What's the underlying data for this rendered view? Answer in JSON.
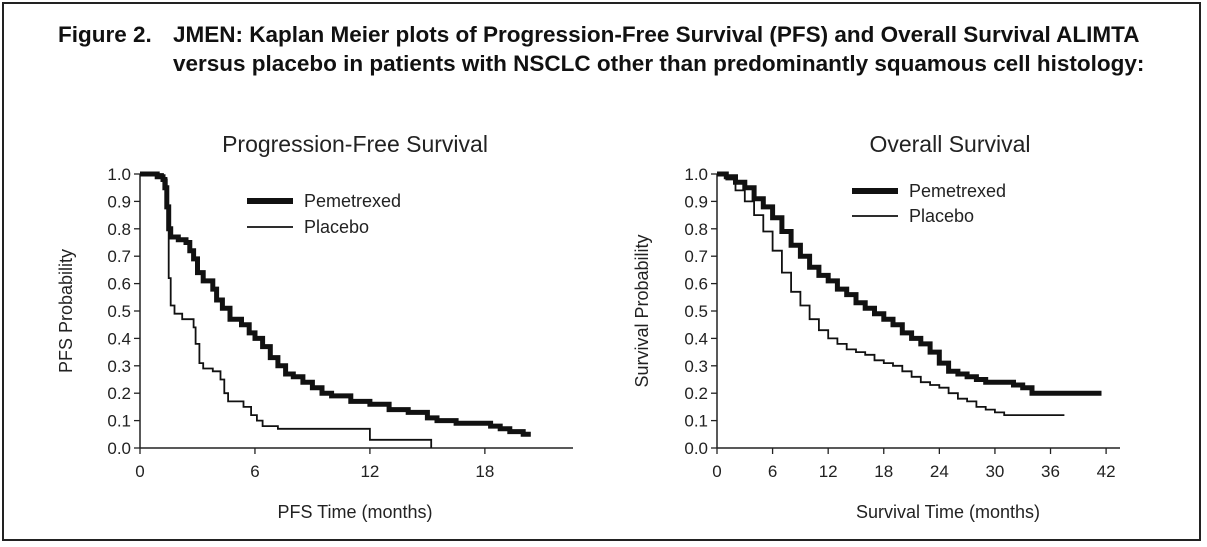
{
  "figure": {
    "label": "Figure 2.",
    "text": "JMEN: Kaplan Meier plots of Progression-Free Survival (PFS) and Overall Survival ALIMTA versus placebo in patients with NSCLC other than predominantly squamous cell histology:"
  },
  "chart_data": [
    {
      "type": "line",
      "title": "Progression-Free Survival",
      "xlabel": "PFS Time (months)",
      "ylabel": "PFS Probability",
      "xlim": [
        0,
        22.5
      ],
      "ylim": [
        0,
        1.0
      ],
      "x_ticks": [
        "0",
        "6",
        "12",
        "18"
      ],
      "x_tick_values": [
        0,
        6,
        12,
        18
      ],
      "y_ticks": [
        "0.0",
        "0.1",
        "0.2",
        "0.3",
        "0.4",
        "0.5",
        "0.6",
        "0.7",
        "0.8",
        "0.9",
        "1.0"
      ],
      "legend_position": "top-center",
      "series": [
        {
          "name": "Pemetrexed",
          "style": "thick",
          "points": [
            [
              0,
              1.0
            ],
            [
              0.6,
              1.0
            ],
            [
              0.9,
              0.99
            ],
            [
              1.2,
              0.98
            ],
            [
              1.3,
              0.95
            ],
            [
              1.4,
              0.88
            ],
            [
              1.5,
              0.8
            ],
            [
              1.6,
              0.77
            ],
            [
              2.0,
              0.76
            ],
            [
              2.4,
              0.75
            ],
            [
              2.6,
              0.72
            ],
            [
              2.8,
              0.69
            ],
            [
              3.0,
              0.64
            ],
            [
              3.3,
              0.61
            ],
            [
              3.8,
              0.58
            ],
            [
              4.0,
              0.54
            ],
            [
              4.3,
              0.51
            ],
            [
              4.7,
              0.47
            ],
            [
              5.3,
              0.45
            ],
            [
              5.7,
              0.42
            ],
            [
              6.0,
              0.4
            ],
            [
              6.4,
              0.37
            ],
            [
              6.8,
              0.33
            ],
            [
              7.2,
              0.3
            ],
            [
              7.6,
              0.27
            ],
            [
              8.0,
              0.26
            ],
            [
              8.5,
              0.24
            ],
            [
              9.0,
              0.22
            ],
            [
              9.5,
              0.2
            ],
            [
              10.0,
              0.19
            ],
            [
              11.0,
              0.17
            ],
            [
              12.0,
              0.16
            ],
            [
              13.0,
              0.14
            ],
            [
              14.0,
              0.13
            ],
            [
              15.0,
              0.11
            ],
            [
              15.5,
              0.1
            ],
            [
              16.5,
              0.09
            ],
            [
              18.0,
              0.09
            ],
            [
              18.3,
              0.08
            ],
            [
              18.8,
              0.07
            ],
            [
              19.3,
              0.06
            ],
            [
              20.0,
              0.05
            ],
            [
              20.4,
              0.05
            ]
          ]
        },
        {
          "name": "Placebo",
          "style": "thin",
          "points": [
            [
              0,
              1.0
            ],
            [
              0.8,
              1.0
            ],
            [
              1.2,
              0.98
            ],
            [
              1.4,
              0.92
            ],
            [
              1.45,
              0.8
            ],
            [
              1.5,
              0.62
            ],
            [
              1.6,
              0.52
            ],
            [
              1.8,
              0.49
            ],
            [
              2.2,
              0.47
            ],
            [
              2.8,
              0.44
            ],
            [
              2.9,
              0.38
            ],
            [
              3.1,
              0.31
            ],
            [
              3.3,
              0.29
            ],
            [
              3.8,
              0.28
            ],
            [
              4.2,
              0.25
            ],
            [
              4.4,
              0.2
            ],
            [
              4.6,
              0.17
            ],
            [
              5.4,
              0.15
            ],
            [
              5.8,
              0.12
            ],
            [
              6.1,
              0.1
            ],
            [
              6.4,
              0.08
            ],
            [
              7.2,
              0.07
            ],
            [
              11.8,
              0.07
            ],
            [
              12.0,
              0.03
            ],
            [
              15.2,
              0.03
            ],
            [
              15.2,
              0.0
            ]
          ]
        }
      ]
    },
    {
      "type": "line",
      "title": "Overall Survival",
      "xlabel": "Survival Time (months)",
      "ylabel": "Survival Probability",
      "xlim": [
        0,
        44
      ],
      "ylim": [
        0,
        1.0
      ],
      "x_ticks": [
        "0",
        "6",
        "12",
        "18",
        "24",
        "30",
        "36",
        "42"
      ],
      "x_tick_values": [
        0,
        6,
        12,
        18,
        24,
        30,
        36,
        42
      ],
      "y_ticks": [
        "0.0",
        "0.1",
        "0.2",
        "0.3",
        "0.4",
        "0.5",
        "0.6",
        "0.7",
        "0.8",
        "0.9",
        "1.0"
      ],
      "legend_position": "top-right",
      "series": [
        {
          "name": "Pemetrexed",
          "style": "thick",
          "points": [
            [
              0,
              1.0
            ],
            [
              1,
              0.99
            ],
            [
              2,
              0.97
            ],
            [
              3,
              0.95
            ],
            [
              4,
              0.91
            ],
            [
              5,
              0.88
            ],
            [
              6,
              0.84
            ],
            [
              7,
              0.79
            ],
            [
              8,
              0.74
            ],
            [
              9,
              0.7
            ],
            [
              10,
              0.66
            ],
            [
              11,
              0.63
            ],
            [
              12,
              0.61
            ],
            [
              13,
              0.58
            ],
            [
              14,
              0.56
            ],
            [
              15,
              0.53
            ],
            [
              16,
              0.51
            ],
            [
              17,
              0.49
            ],
            [
              18,
              0.47
            ],
            [
              19,
              0.45
            ],
            [
              20,
              0.42
            ],
            [
              21,
              0.4
            ],
            [
              22,
              0.38
            ],
            [
              23,
              0.35
            ],
            [
              24,
              0.31
            ],
            [
              25,
              0.28
            ],
            [
              26,
              0.27
            ],
            [
              27,
              0.26
            ],
            [
              28,
              0.25
            ],
            [
              29,
              0.24
            ],
            [
              31,
              0.24
            ],
            [
              32,
              0.23
            ],
            [
              33,
              0.22
            ],
            [
              34,
              0.2
            ],
            [
              41.5,
              0.2
            ]
          ]
        },
        {
          "name": "Placebo",
          "style": "thin",
          "points": [
            [
              0,
              1.0
            ],
            [
              1,
              0.98
            ],
            [
              2,
              0.94
            ],
            [
              3,
              0.9
            ],
            [
              4,
              0.85
            ],
            [
              5,
              0.79
            ],
            [
              6,
              0.72
            ],
            [
              7,
              0.64
            ],
            [
              8,
              0.57
            ],
            [
              9,
              0.52
            ],
            [
              10,
              0.47
            ],
            [
              11,
              0.43
            ],
            [
              12,
              0.4
            ],
            [
              13,
              0.38
            ],
            [
              14,
              0.36
            ],
            [
              15,
              0.35
            ],
            [
              16,
              0.34
            ],
            [
              17,
              0.32
            ],
            [
              18,
              0.31
            ],
            [
              19,
              0.3
            ],
            [
              20,
              0.28
            ],
            [
              21,
              0.26
            ],
            [
              22,
              0.24
            ],
            [
              23,
              0.23
            ],
            [
              24,
              0.22
            ],
            [
              25,
              0.2
            ],
            [
              26,
              0.18
            ],
            [
              27,
              0.17
            ],
            [
              28,
              0.15
            ],
            [
              29,
              0.14
            ],
            [
              30,
              0.13
            ],
            [
              31,
              0.12
            ],
            [
              37.5,
              0.12
            ]
          ]
        }
      ]
    }
  ]
}
